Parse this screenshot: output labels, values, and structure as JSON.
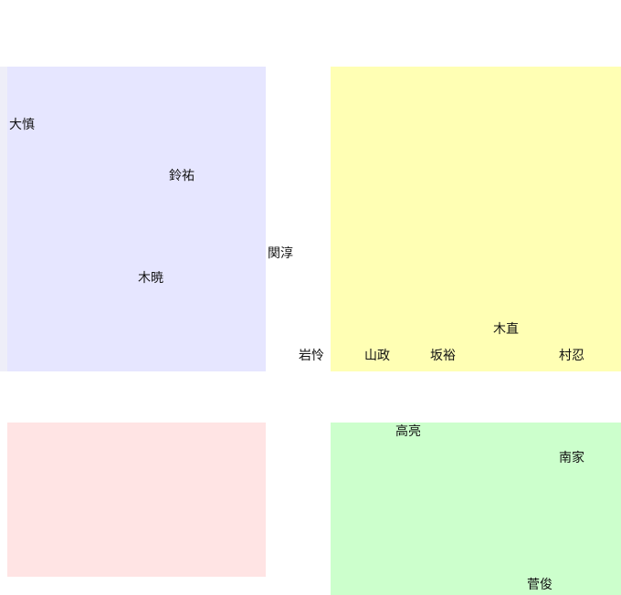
{
  "regions": [
    {
      "id": "blue",
      "color": "#e6e6ff",
      "edge_color": "#eeeef8"
    },
    {
      "id": "yellow",
      "color": "#ffffb4"
    },
    {
      "id": "pink",
      "color": "#ffe4e4"
    },
    {
      "id": "green",
      "color": "#ccffcc"
    }
  ],
  "names": [
    "大慎",
    "鈴祐",
    "関淳",
    "木暁",
    "木直",
    "岩怜",
    "山政",
    "坂裕",
    "村忍",
    "高亮",
    "南家",
    "菅俊"
  ]
}
